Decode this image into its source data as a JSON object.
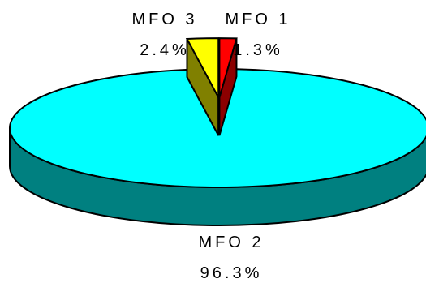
{
  "chart_data": {
    "type": "pie",
    "style": "3d-exploded",
    "title": "",
    "slices": [
      {
        "name": "MFO 1",
        "value": 1.3,
        "label": "1.3%",
        "color": "#ff0000",
        "side_color": "#8b0000"
      },
      {
        "name": "MFO 2",
        "value": 96.3,
        "label": "96.3%",
        "color": "#00ffff",
        "side_color": "#008080"
      },
      {
        "name": "MFO 3",
        "value": 2.4,
        "label": "2.4%",
        "color": "#ffff00",
        "side_color": "#808000"
      }
    ],
    "start_angle_deg": 270,
    "exploded": [
      "MFO 1",
      "MFO 3"
    ],
    "legend": "none"
  }
}
